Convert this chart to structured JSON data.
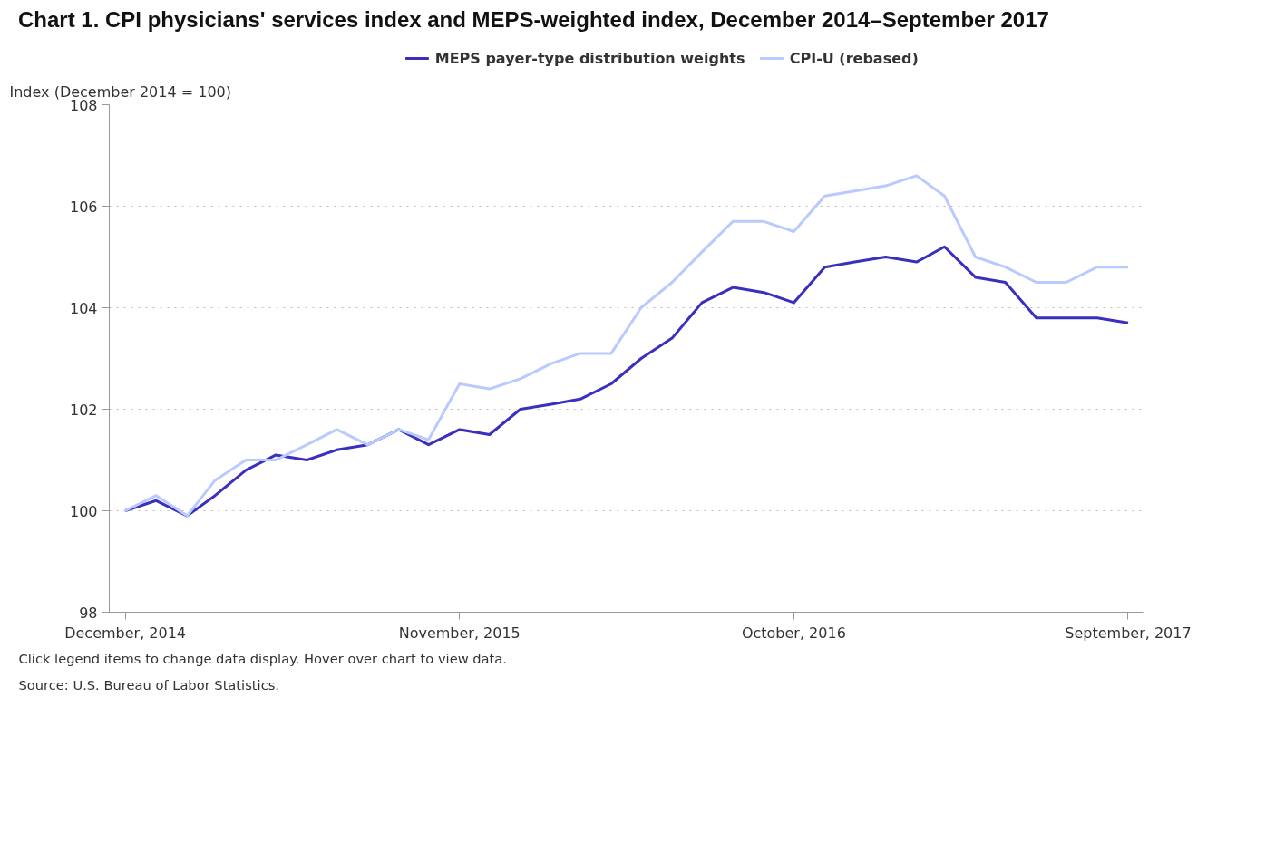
{
  "chart_data": {
    "type": "line",
    "title": "Chart 1. CPI physicians' services index and MEPS-weighted index, December 2014–September 2017",
    "ylabel": "Index (December 2014 = 100)",
    "x": [
      "2014-12",
      "2015-01",
      "2015-02",
      "2015-03",
      "2015-04",
      "2015-05",
      "2015-06",
      "2015-07",
      "2015-08",
      "2015-09",
      "2015-10",
      "2015-11",
      "2015-12",
      "2016-01",
      "2016-02",
      "2016-03",
      "2016-04",
      "2016-05",
      "2016-06",
      "2016-07",
      "2016-08",
      "2016-09",
      "2016-10",
      "2016-11",
      "2016-12",
      "2017-01",
      "2017-02",
      "2017-03",
      "2017-04",
      "2017-05",
      "2017-06",
      "2017-07",
      "2017-08",
      "2017-09"
    ],
    "series": [
      {
        "name": "MEPS payer-type distribution weights",
        "color": "#3a2fbf",
        "values": [
          100.0,
          100.2,
          99.9,
          100.3,
          100.8,
          101.1,
          101.0,
          101.2,
          101.3,
          101.6,
          101.3,
          101.6,
          101.5,
          102.0,
          102.1,
          102.2,
          102.5,
          103.0,
          103.4,
          104.1,
          104.4,
          104.3,
          104.1,
          104.8,
          104.9,
          105.0,
          104.9,
          105.2,
          104.6,
          104.5,
          103.8,
          103.8,
          103.8,
          103.7
        ]
      },
      {
        "name": "CPI-U (rebased)",
        "color": "#b9caff",
        "values": [
          100.0,
          100.3,
          99.9,
          100.6,
          101.0,
          101.0,
          101.3,
          101.6,
          101.3,
          101.6,
          101.4,
          102.5,
          102.4,
          102.6,
          102.9,
          103.1,
          103.1,
          104.0,
          104.5,
          105.1,
          105.7,
          105.7,
          105.5,
          106.2,
          106.3,
          106.4,
          106.6,
          106.2,
          105.0,
          104.8,
          104.5,
          104.5,
          104.8,
          104.8
        ]
      }
    ],
    "xlim": [
      "2014-11-15",
      "2017-09-16"
    ],
    "xticks": [
      {
        "value": "2014-12",
        "label": "December, 2014"
      },
      {
        "value": "2015-11",
        "label": "November, 2015"
      },
      {
        "value": "2016-10",
        "label": "October, 2016"
      },
      {
        "value": "2017-09",
        "label": "September, 2017"
      }
    ],
    "ylim": [
      98,
      108
    ],
    "yticks": [
      98,
      100,
      102,
      104,
      106,
      108
    ],
    "grid": "y",
    "legend": "top",
    "marker": "none",
    "line_style": "solid",
    "annotations": [
      "Click legend items to change data display. Hover over chart to view data.",
      "Source: U.S. Bureau of Labor Statistics."
    ]
  }
}
